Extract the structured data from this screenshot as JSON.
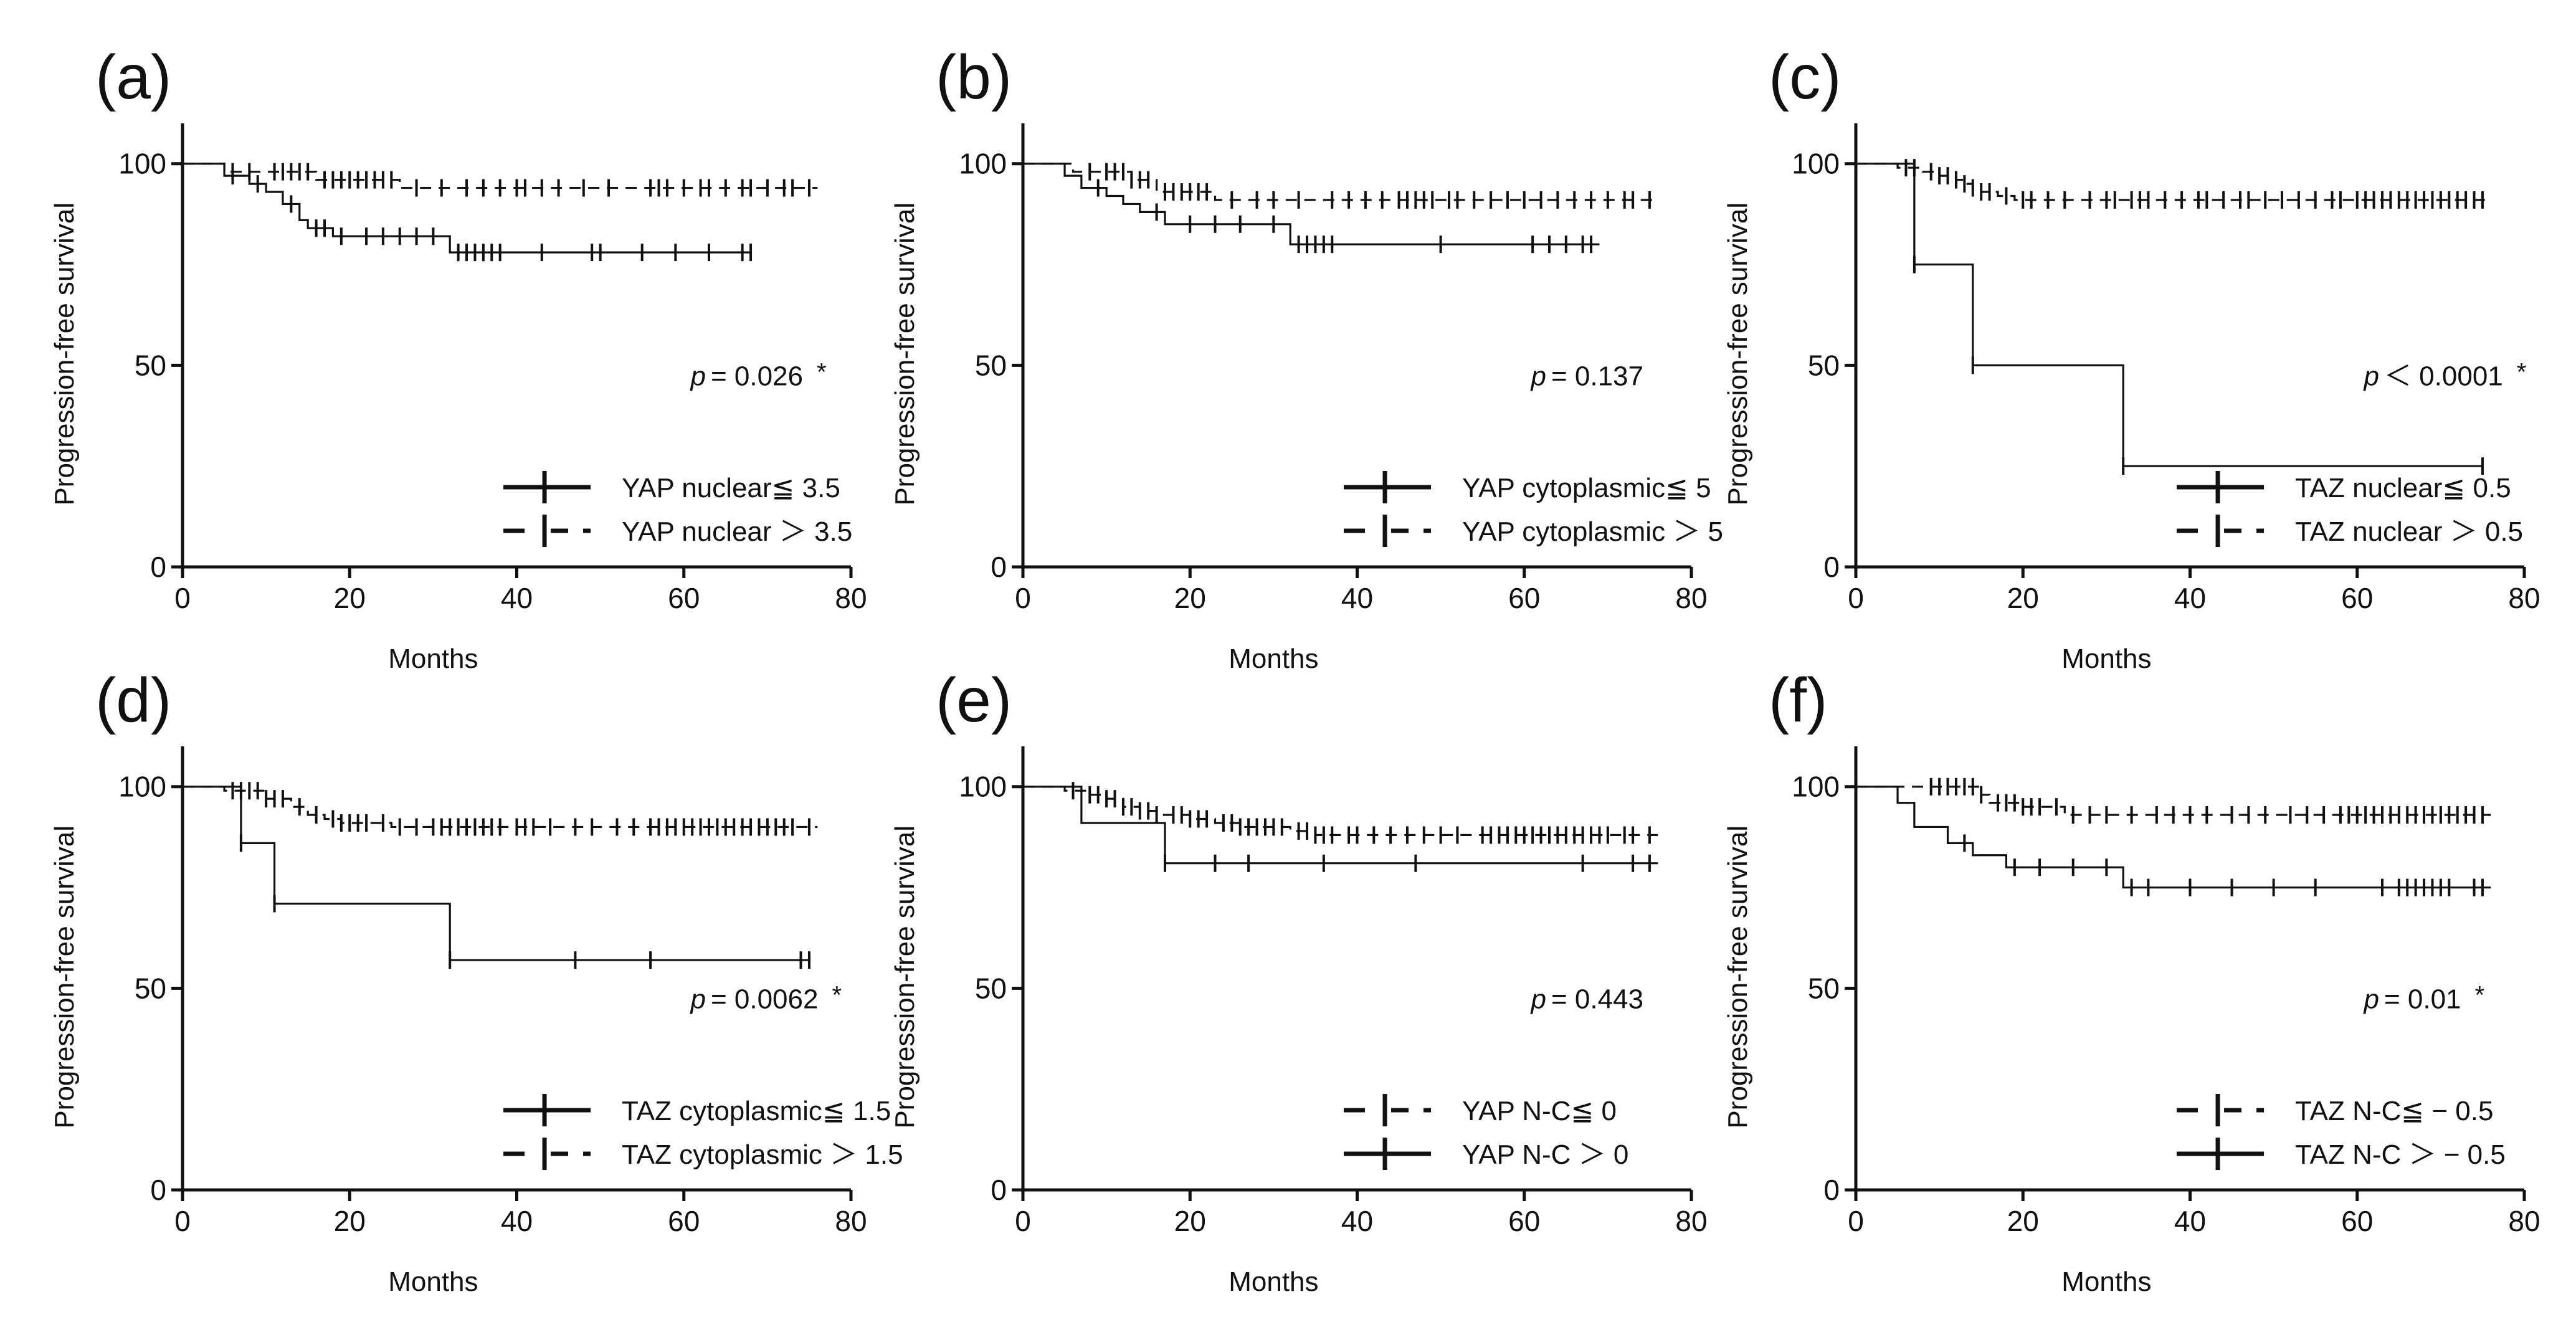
{
  "figure": {
    "colors": {
      "ink": "#111111",
      "background": "#ffffff"
    }
  },
  "chart_data": [
    {
      "type": "line",
      "subtype": "kaplan-meier",
      "panel": "(a)",
      "xlabel": "Months",
      "ylabel": "Progression-free survival",
      "xlim": [
        0,
        80
      ],
      "ylim": [
        0,
        110
      ],
      "xticks": [
        0,
        20,
        40,
        60,
        80
      ],
      "yticks": [
        0,
        50,
        100
      ],
      "pvalue": {
        "p": "p",
        "text": "= 0.026",
        "star": "*"
      },
      "legend_order": [
        0,
        1
      ],
      "series": [
        {
          "name": "YAP nuclear≦3.5",
          "legend_label": "YAP nuclear≦ 3.5",
          "style": "solid",
          "steps": [
            [
              0,
              100
            ],
            [
              5,
              97
            ],
            [
              8,
              95
            ],
            [
              10,
              93
            ],
            [
              12,
              90
            ],
            [
              14,
              86
            ],
            [
              15,
              84
            ],
            [
              18,
              82
            ],
            [
              32,
              78
            ],
            [
              68,
              78
            ]
          ],
          "censors": [
            6,
            9,
            13,
            16,
            17,
            19,
            22,
            24,
            26,
            28,
            30,
            33,
            34,
            35,
            36,
            37,
            38,
            43,
            49,
            50,
            55,
            59,
            63,
            67,
            68
          ]
        },
        {
          "name": "YAP nuclear > 3.5",
          "legend_label": "YAP nuclear ＞ 3.5",
          "style": "dashed",
          "steps": [
            [
              0,
              100
            ],
            [
              5,
              98
            ],
            [
              16,
              96
            ],
            [
              26,
              94
            ],
            [
              76,
              94
            ]
          ],
          "censors": [
            6,
            8,
            11,
            12,
            13,
            14,
            15,
            17,
            18,
            19,
            20,
            21,
            22,
            23,
            24,
            25,
            28,
            31,
            34,
            36,
            38,
            40,
            41,
            43,
            45,
            48,
            51,
            56,
            57,
            58,
            60,
            62,
            63,
            65,
            67,
            68,
            70,
            72,
            73,
            75
          ]
        }
      ]
    },
    {
      "type": "line",
      "subtype": "kaplan-meier",
      "panel": "(b)",
      "xlabel": "Months",
      "ylabel": "Progression-free survival",
      "xlim": [
        0,
        80
      ],
      "ylim": [
        0,
        110
      ],
      "xticks": [
        0,
        20,
        40,
        60,
        80
      ],
      "yticks": [
        0,
        50,
        100
      ],
      "pvalue": {
        "p": "p",
        "text": "= 0.137",
        "star": ""
      },
      "legend_order": [
        0,
        1
      ],
      "series": [
        {
          "name": "YAP cytoplasmic≦5",
          "legend_label": "YAP cytoplasmic≦ 5",
          "style": "solid",
          "steps": [
            [
              0,
              100
            ],
            [
              5,
              97
            ],
            [
              7,
              94
            ],
            [
              10,
              92
            ],
            [
              12,
              90
            ],
            [
              14,
              88
            ],
            [
              17,
              85
            ],
            [
              32,
              80
            ],
            [
              69,
              80
            ]
          ],
          "censors": [
            9,
            16,
            20,
            23,
            26,
            30,
            33,
            34,
            35,
            36,
            37,
            50,
            61,
            63,
            65,
            67,
            68
          ]
        },
        {
          "name": "YAP cytoplasmic > 5",
          "legend_label": "YAP cytoplasmic ＞ 5",
          "style": "dashed",
          "steps": [
            [
              0,
              100
            ],
            [
              6,
              98
            ],
            [
              13,
              96
            ],
            [
              16,
              93
            ],
            [
              23,
              91
            ],
            [
              76,
              91
            ]
          ],
          "censors": [
            8,
            10,
            11,
            12,
            13,
            14,
            15,
            17,
            18,
            19,
            20,
            21,
            22,
            25,
            28,
            30,
            33,
            37,
            39,
            41,
            43,
            45,
            46,
            47,
            48,
            49,
            51,
            52,
            54,
            56,
            58,
            60,
            62,
            64,
            66,
            68,
            70,
            72,
            73,
            75
          ]
        }
      ]
    },
    {
      "type": "line",
      "subtype": "kaplan-meier",
      "panel": "(c)",
      "xlabel": "Months",
      "ylabel": "Progression-free survival",
      "xlim": [
        0,
        80
      ],
      "ylim": [
        0,
        110
      ],
      "xticks": [
        0,
        20,
        40,
        60,
        80
      ],
      "yticks": [
        0,
        50,
        100
      ],
      "pvalue": {
        "p": "p",
        "text": "＜ 0.0001",
        "star": "*"
      },
      "legend_order": [
        0,
        1
      ],
      "series": [
        {
          "name": "TAZ nuclear≦0.5",
          "legend_label": "TAZ nuclear≦ 0.5",
          "style": "solid",
          "steps": [
            [
              0,
              100
            ],
            [
              7,
              75
            ],
            [
              14,
              50
            ],
            [
              32,
              25
            ],
            [
              75,
              25
            ]
          ],
          "censors": [
            7,
            14,
            32,
            75
          ]
        },
        {
          "name": "TAZ nuclear > 0.5",
          "legend_label": "TAZ nuclear ＞ 0.5",
          "style": "dashed",
          "steps": [
            [
              0,
              100
            ],
            [
              5,
              99
            ],
            [
              8,
              98
            ],
            [
              10,
              97
            ],
            [
              12,
              96
            ],
            [
              13,
              95
            ],
            [
              14,
              94
            ],
            [
              15,
              93
            ],
            [
              17,
              92
            ],
            [
              19,
              91
            ],
            [
              76,
              91
            ]
          ],
          "censors": [
            6,
            7,
            9,
            10,
            11,
            12,
            13,
            14,
            15,
            16,
            18,
            20,
            21,
            23,
            25,
            28,
            30,
            31,
            33,
            34,
            35,
            37,
            39,
            41,
            42,
            44,
            46,
            47,
            49,
            51,
            53,
            55,
            57,
            58,
            60,
            61,
            62,
            63,
            64,
            65,
            66,
            67,
            68,
            69,
            70,
            71,
            72,
            73,
            74,
            75
          ]
        }
      ]
    },
    {
      "type": "line",
      "subtype": "kaplan-meier",
      "panel": "(d)",
      "xlabel": "Months",
      "ylabel": "Progression-free survival",
      "xlim": [
        0,
        80
      ],
      "ylim": [
        0,
        110
      ],
      "xticks": [
        0,
        20,
        40,
        60,
        80
      ],
      "yticks": [
        0,
        50,
        100
      ],
      "pvalue": {
        "p": "p",
        "text": "= 0.0062",
        "star": "*"
      },
      "legend_order": [
        0,
        1
      ],
      "series": [
        {
          "name": "TAZ cytoplasmic≦1.5",
          "legend_label": "TAZ cytoplasmic≦ 1.5",
          "style": "solid",
          "steps": [
            [
              0,
              100
            ],
            [
              7,
              86
            ],
            [
              11,
              71
            ],
            [
              32,
              57
            ],
            [
              75,
              57
            ]
          ],
          "censors": [
            7,
            11,
            32,
            47,
            56,
            74,
            75
          ]
        },
        {
          "name": "TAZ cytoplasmic > 1.5",
          "legend_label": "TAZ cytoplasmic ＞ 1.5",
          "style": "dashed",
          "steps": [
            [
              0,
              100
            ],
            [
              5,
              99
            ],
            [
              10,
              97
            ],
            [
              13,
              95
            ],
            [
              15,
              93
            ],
            [
              17,
              92
            ],
            [
              19,
              91
            ],
            [
              25,
              90
            ],
            [
              76,
              90
            ]
          ],
          "censors": [
            6,
            7,
            8,
            9,
            10,
            11,
            12,
            14,
            16,
            18,
            19,
            20,
            21,
            22,
            24,
            26,
            28,
            30,
            31,
            32,
            33,
            34,
            35,
            36,
            37,
            38,
            40,
            41,
            42,
            44,
            47,
            49,
            52,
            54,
            56,
            57,
            58,
            59,
            60,
            61,
            62,
            63,
            64,
            65,
            66,
            67,
            68,
            69,
            70,
            71,
            72,
            73,
            75
          ]
        }
      ]
    },
    {
      "type": "line",
      "subtype": "kaplan-meier",
      "panel": "(e)",
      "xlabel": "Months",
      "ylabel": "Progression-free survival",
      "xlim": [
        0,
        80
      ],
      "ylim": [
        0,
        110
      ],
      "xticks": [
        0,
        20,
        40,
        60,
        80
      ],
      "yticks": [
        0,
        50,
        100
      ],
      "pvalue": {
        "p": "p",
        "text": "= 0.443",
        "star": ""
      },
      "legend_order": [
        1,
        0
      ],
      "series": [
        {
          "name": "YAP N-C > 0",
          "legend_label": "YAP N-C ＞ 0",
          "style": "solid",
          "steps": [
            [
              0,
              100
            ],
            [
              7,
              91
            ],
            [
              17,
              81
            ],
            [
              76,
              81
            ]
          ],
          "censors": [
            17,
            23,
            27,
            36,
            47,
            67,
            73,
            75
          ]
        },
        {
          "name": "YAP N-C≦0",
          "legend_label": "YAP N-C≦ 0",
          "style": "dashed",
          "steps": [
            [
              0,
              100
            ],
            [
              5,
              99
            ],
            [
              8,
              98
            ],
            [
              10,
              97
            ],
            [
              12,
              95
            ],
            [
              14,
              94
            ],
            [
              16,
              93
            ],
            [
              20,
              92
            ],
            [
              23,
              91
            ],
            [
              26,
              90
            ],
            [
              32,
              89
            ],
            [
              35,
              88
            ],
            [
              76,
              88
            ]
          ],
          "censors": [
            6,
            8,
            9,
            10,
            11,
            12,
            13,
            14,
            15,
            16,
            18,
            19,
            20,
            21,
            22,
            24,
            25,
            26,
            27,
            28,
            29,
            30,
            31,
            33,
            34,
            35,
            36,
            37,
            39,
            40,
            42,
            44,
            46,
            48,
            50,
            52,
            55,
            56,
            57,
            58,
            59,
            60,
            61,
            62,
            63,
            64,
            65,
            66,
            67,
            68,
            69,
            70,
            72,
            73,
            75
          ]
        }
      ]
    },
    {
      "type": "line",
      "subtype": "kaplan-meier",
      "panel": "(f)",
      "xlabel": "Months",
      "ylabel": "Progression-free survival",
      "xlim": [
        0,
        80
      ],
      "ylim": [
        0,
        110
      ],
      "xticks": [
        0,
        20,
        40,
        60,
        80
      ],
      "yticks": [
        0,
        50,
        100
      ],
      "pvalue": {
        "p": "p",
        "text": "= 0.01",
        "star": "*"
      },
      "legend_order": [
        1,
        0
      ],
      "series": [
        {
          "name": "TAZ N-C > -0.5",
          "legend_label": "TAZ N-C ＞ − 0.5",
          "style": "solid",
          "steps": [
            [
              0,
              100
            ],
            [
              5,
              96
            ],
            [
              7,
              90
            ],
            [
              11,
              86
            ],
            [
              14,
              83
            ],
            [
              18,
              80
            ],
            [
              32,
              75
            ],
            [
              76,
              75
            ]
          ],
          "censors": [
            13,
            19,
            22,
            26,
            30,
            33,
            35,
            40,
            45,
            50,
            55,
            63,
            65,
            66,
            67,
            68,
            69,
            70,
            71,
            74,
            75
          ]
        },
        {
          "name": "TAZ N-C≦-0.5",
          "legend_label": "TAZ N-C≦ − 0.5",
          "style": "dashed",
          "steps": [
            [
              0,
              100
            ],
            [
              15,
              98
            ],
            [
              16,
              96
            ],
            [
              20,
              95
            ],
            [
              25,
              93
            ],
            [
              76,
              93
            ]
          ],
          "censors": [
            9,
            10,
            11,
            12,
            13,
            14,
            15,
            17,
            18,
            19,
            20,
            21,
            22,
            24,
            26,
            28,
            30,
            33,
            36,
            38,
            40,
            42,
            45,
            47,
            49,
            52,
            54,
            56,
            58,
            59,
            60,
            61,
            62,
            63,
            64,
            65,
            66,
            67,
            68,
            69,
            70,
            71,
            72,
            73,
            74,
            75
          ]
        }
      ]
    }
  ]
}
